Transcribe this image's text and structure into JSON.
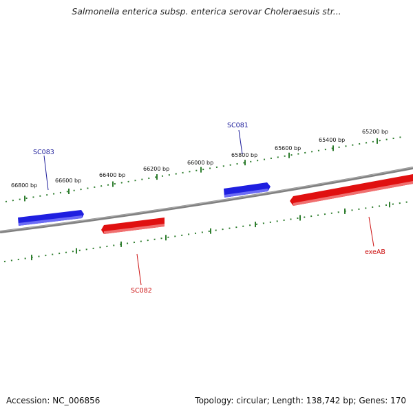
{
  "title": "Salmonella enterica subsp. enterica serovar Choleraesuis str...",
  "footer": {
    "accession": "Accession: NC_006856",
    "summary": "Topology: circular; Length: 138,742 bp; Genes: 170"
  },
  "colors": {
    "backbone": "#808080",
    "tick": "#2e7d2e",
    "forward_gene": "#1f1fe0",
    "reverse_gene": "#e01010",
    "forward_label": "#1a1a99",
    "reverse_label": "#cc1111"
  },
  "ticks": [
    {
      "label": "66800 bp"
    },
    {
      "label": "66600 bp"
    },
    {
      "label": "66400 bp"
    },
    {
      "label": "66200 bp"
    },
    {
      "label": "66000 bp"
    },
    {
      "label": "65800 bp"
    },
    {
      "label": "65600 bp"
    },
    {
      "label": "65400 bp"
    },
    {
      "label": "65200 bp"
    }
  ],
  "genes": [
    {
      "name": "SC083",
      "strand": "forward"
    },
    {
      "name": "SC081",
      "strand": "forward"
    },
    {
      "name": "SC082",
      "strand": "reverse"
    },
    {
      "name": "exeAB",
      "strand": "reverse"
    }
  ]
}
